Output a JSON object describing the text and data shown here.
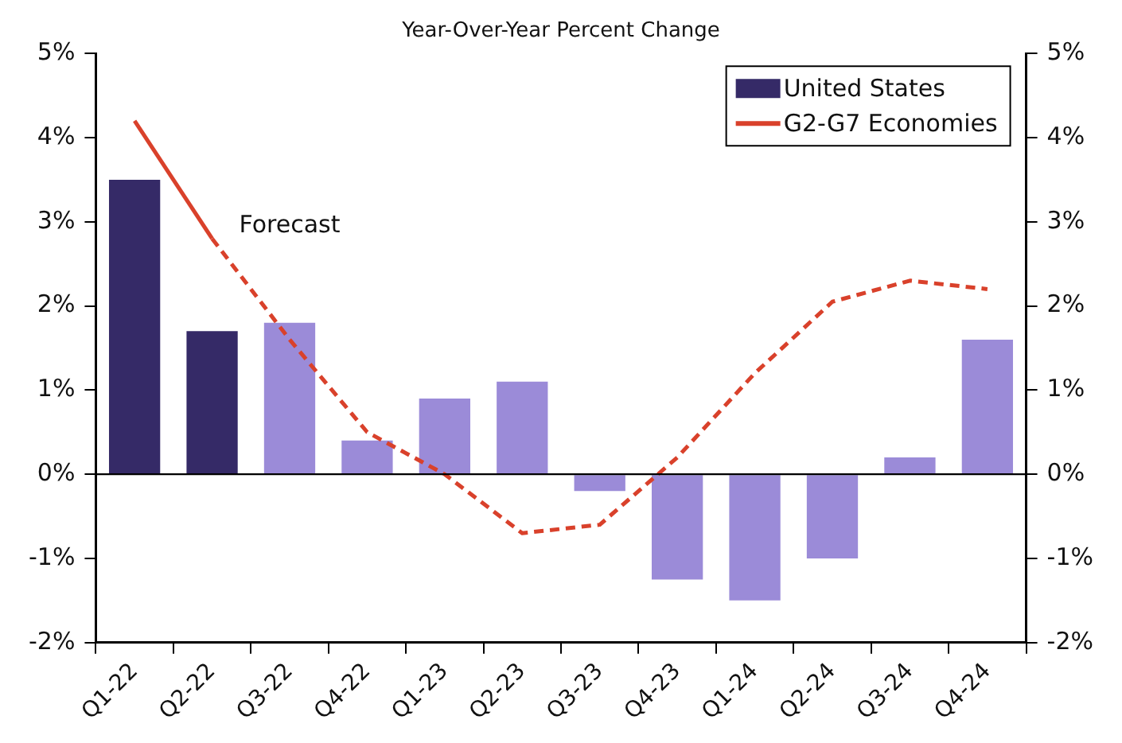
{
  "chart_data": {
    "type": "bar",
    "title": "Year-Over-Year Percent Change",
    "categories": [
      "Q1-22",
      "Q2-22",
      "Q3-22",
      "Q4-22",
      "Q1-23",
      "Q2-23",
      "Q3-23",
      "Q4-23",
      "Q1-24",
      "Q2-24",
      "Q3-24",
      "Q4-24"
    ],
    "series": [
      {
        "name": "United States",
        "colors": [
          "#352a67",
          "#352a67",
          "#9b8bd8",
          "#9b8bd8",
          "#9b8bd8",
          "#9b8bd8",
          "#9b8bd8",
          "#9b8bd8",
          "#9b8bd8",
          "#9b8bd8",
          "#9b8bd8",
          "#9b8bd8"
        ],
        "color": "#352a67",
        "values": [
          3.5,
          1.7,
          1.8,
          0.4,
          0.9,
          1.1,
          -0.2,
          -1.25,
          -1.5,
          -1.0,
          0.2,
          1.6
        ]
      },
      {
        "name": "G2-G7 Economies",
        "type": "line",
        "color": "#d9412b",
        "line_style": "solid",
        "values": [
          4.2,
          2.8,
          null,
          null,
          null,
          null,
          null,
          null,
          null,
          null,
          null,
          null
        ]
      },
      {
        "type": "line",
        "color": "#d9412b",
        "line_style": "dashed",
        "values": [
          null,
          2.8,
          1.6,
          0.5,
          0.0,
          -0.7,
          -0.6,
          0.2,
          1.2,
          2.05,
          2.3,
          2.2
        ]
      }
    ],
    "annotations": [
      "Forecast"
    ],
    "ylim": [
      -2,
      5
    ],
    "yticks": [
      {
        "value": -2,
        "label": "-2%"
      },
      {
        "value": -1,
        "label": "-1%"
      },
      {
        "value": 0,
        "label": "0%"
      },
      {
        "value": 1,
        "label": "1%"
      },
      {
        "value": 2,
        "label": "2%"
      },
      {
        "value": 3,
        "label": "3%"
      },
      {
        "value": 4,
        "label": "4%"
      },
      {
        "value": 5,
        "label": "5%"
      }
    ],
    "y2lim": [
      -2,
      5
    ],
    "y2ticks": [
      {
        "value": -2,
        "label": "-2%"
      },
      {
        "value": -1,
        "label": "-1%"
      },
      {
        "value": 0,
        "label": "0%"
      },
      {
        "value": 1,
        "label": "1%"
      },
      {
        "value": 2,
        "label": "2%"
      },
      {
        "value": 3,
        "label": "3%"
      },
      {
        "value": 4,
        "label": "4%"
      },
      {
        "value": 5,
        "label": "5%"
      }
    ],
    "ref_lines": [
      {
        "axis": "y",
        "value": 0,
        "color": "#000000"
      }
    ],
    "grid": false,
    "legend": "top right",
    "marker": "none"
  }
}
